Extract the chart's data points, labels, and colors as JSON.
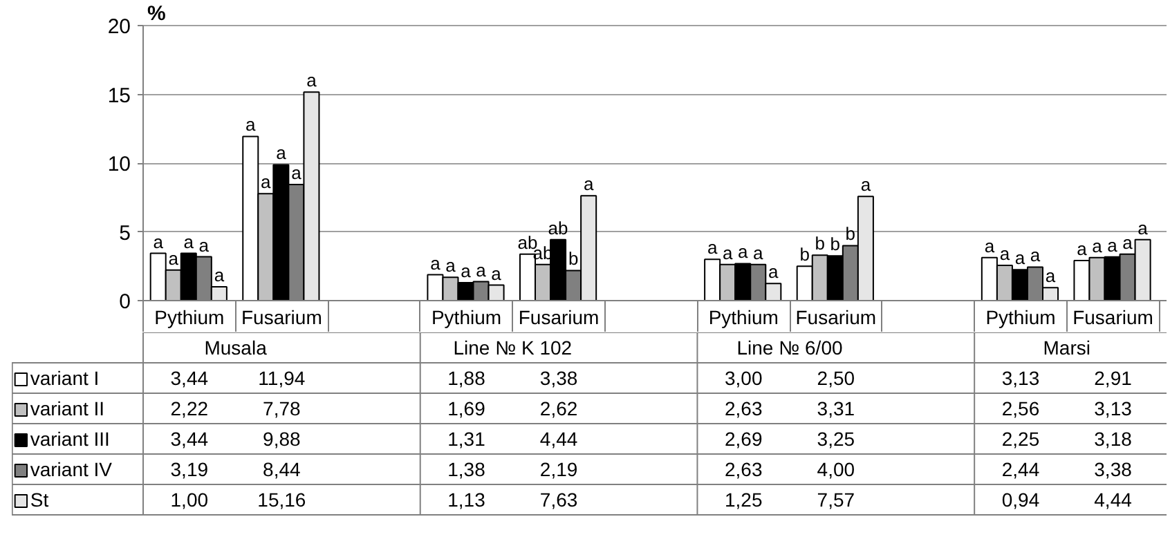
{
  "chart_data": {
    "type": "bar",
    "ylabel": "%",
    "categories": [
      "Pythium",
      "Fusarium",
      null,
      "Pythium",
      "Fusarium",
      null,
      "Pythium",
      "Fusarium",
      null,
      "Pythium",
      "Fusarium"
    ],
    "annotations": [
      "Musala",
      "Line № K 102",
      "Line № 6/00",
      "Marsi",
      "a",
      "a",
      "a",
      "ab",
      "a",
      "b",
      "a",
      "a",
      "a",
      "a",
      "a",
      "ab",
      "a",
      "b",
      "a",
      "a",
      "a",
      "a",
      "a",
      "ab",
      "a",
      "b",
      "a",
      "a",
      "a",
      "a",
      "a",
      "b",
      "a",
      "b",
      "a",
      "a",
      "a",
      "a",
      "a",
      "a",
      "a",
      "a",
      "a",
      "a"
    ],
    "series": [
      {
        "name": "variant I",
        "color": "#ffffff",
        "values": [
          3.44,
          11.94,
          null,
          1.88,
          3.38,
          null,
          3.0,
          2.5,
          null,
          3.13,
          2.91
        ],
        "value_labels": [
          "3,44",
          "11,94",
          null,
          "1,88",
          "3,38",
          null,
          "3,00",
          "2,50",
          null,
          "3,13",
          "2,91"
        ]
      },
      {
        "name": "variant II",
        "color": "#c0c0c0",
        "values": [
          2.22,
          7.78,
          null,
          1.69,
          2.62,
          null,
          2.63,
          3.31,
          null,
          2.56,
          3.13
        ],
        "value_labels": [
          "2,22",
          "7,78",
          null,
          "1,69",
          "2,62",
          null,
          "2,63",
          "3,31",
          null,
          "2,56",
          "3,13"
        ]
      },
      {
        "name": "variant III",
        "color": "#000000",
        "values": [
          3.44,
          9.88,
          null,
          1.31,
          4.44,
          null,
          2.69,
          3.25,
          null,
          2.25,
          3.18
        ],
        "value_labels": [
          "3,44",
          "9,88",
          null,
          "1,31",
          "4,44",
          null,
          "2,69",
          "3,25",
          null,
          "2,25",
          "3,18"
        ]
      },
      {
        "name": "variant IV",
        "color": "#808080",
        "values": [
          3.19,
          8.44,
          null,
          1.38,
          2.19,
          null,
          2.63,
          4.0,
          null,
          2.44,
          3.38
        ],
        "value_labels": [
          "3,19",
          "8,44",
          null,
          "1,38",
          "2,19",
          null,
          "2,63",
          "4,00",
          null,
          "2,44",
          "3,38"
        ]
      },
      {
        "name": "St",
        "color": "#e6e6e6",
        "values": [
          1.0,
          15.16,
          null,
          1.13,
          7.63,
          null,
          1.25,
          7.57,
          null,
          0.94,
          4.44
        ],
        "value_labels": [
          "1,00",
          "15,16",
          null,
          "1,13",
          "7,63",
          null,
          "1,25",
          "7,57",
          null,
          "0,94",
          "4,44"
        ]
      }
    ],
    "ylim": [
      0,
      20
    ],
    "yticks": [
      0,
      5,
      10,
      15,
      20
    ],
    "grid": "y",
    "legend": "bottom"
  }
}
